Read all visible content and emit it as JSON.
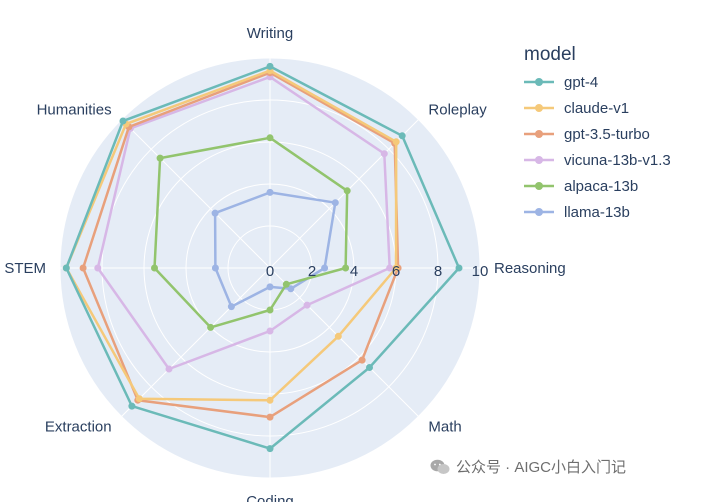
{
  "chart_data": {
    "type": "radar",
    "axes": [
      "Writing",
      "Roleplay",
      "Reasoning",
      "Math",
      "Coding",
      "Extraction",
      "STEM",
      "Humanities"
    ],
    "radial_range": [
      0,
      10
    ],
    "radial_ticks": [
      "0",
      "2",
      "4",
      "6",
      "8",
      "10"
    ],
    "grid": true,
    "legend_title": "model",
    "legend_position": "top-right",
    "series": [
      {
        "name": "gpt-4",
        "color": "#6bbab8",
        "values": [
          9.6,
          8.9,
          9.0,
          6.7,
          8.6,
          9.3,
          9.7,
          9.9
        ]
      },
      {
        "name": "claude-v1",
        "color": "#f5c97a",
        "values": [
          9.4,
          8.5,
          6.0,
          4.6,
          6.3,
          8.8,
          9.7,
          9.7
        ]
      },
      {
        "name": "gpt-3.5-turbo",
        "color": "#e8a07c",
        "values": [
          9.3,
          8.4,
          6.1,
          6.2,
          7.1,
          8.9,
          8.9,
          9.5
        ]
      },
      {
        "name": "vicuna-13b-v1.3",
        "color": "#d7b7e6",
        "values": [
          9.1,
          7.7,
          5.7,
          2.5,
          3.0,
          6.8,
          8.2,
          9.4
        ]
      },
      {
        "name": "alpaca-13b",
        "color": "#92c46d",
        "values": [
          6.2,
          5.2,
          3.6,
          1.1,
          2.0,
          4.0,
          5.5,
          7.4
        ]
      },
      {
        "name": "llama-13b",
        "color": "#9db4e4",
        "values": [
          3.6,
          4.4,
          2.6,
          1.4,
          0.9,
          2.6,
          2.6,
          3.7
        ]
      }
    ]
  },
  "watermark": {
    "text": "公众号 · AIGC小白入门记",
    "icon": "wechat-icon"
  }
}
